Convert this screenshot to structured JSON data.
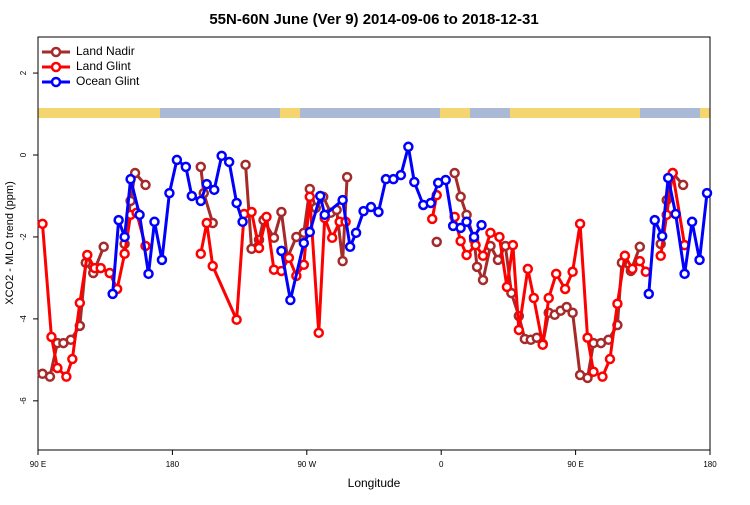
{
  "chart_data": {
    "type": "line",
    "title": "55N-60N June (Ver 9)   2014-09-06 to 2018-12-31",
    "x_label": "Longitude",
    "y_label": "XCO2 - MLO trend (ppm)",
    "xlim": [
      90,
      540
    ],
    "ylim": [
      -7.2,
      2.88
    ],
    "xticks": [
      {
        "value": 90,
        "label": "90 E"
      },
      {
        "value": 180,
        "label": "180"
      },
      {
        "value": 270,
        "label": "90 W"
      },
      {
        "value": 360,
        "label": "0"
      },
      {
        "value": 450,
        "label": "90 E"
      },
      {
        "value": 540,
        "label": "180"
      }
    ],
    "yticks": [
      2,
      0,
      -2,
      -4,
      -6
    ],
    "legend": "top-left",
    "series": [
      {
        "name": "Land Nadir",
        "color": "#a52a2a",
        "x": [
          93,
          98,
          103,
          107,
          112,
          118,
          122,
          127,
          134,
          141,
          148,
          152,
          155,
          162,
          180,
          199,
          201,
          207,
          215,
          229,
          233,
          238,
          241,
          248,
          253,
          257,
          263,
          268,
          272,
          276,
          281,
          286,
          290,
          294,
          297,
          330,
          357,
          365,
          369,
          373,
          377,
          382,
          384,
          388,
          393,
          398,
          403,
          407,
          412,
          416,
          420,
          424,
          428,
          432,
          436,
          440,
          444,
          448,
          453,
          458,
          462,
          467,
          472,
          478,
          481,
          487,
          493,
          500,
          507,
          511,
          515,
          522
        ],
        "values": [
          -5.34,
          -5.41,
          -4.59,
          -4.59,
          -4.51,
          -4.17,
          -2.63,
          -2.88,
          -2.24,
          null,
          -2.17,
          -1.12,
          -0.44,
          -0.73,
          null,
          -0.29,
          -0.93,
          -1.66,
          null,
          -0.24,
          -2.29,
          -2.07,
          -1.59,
          -2.02,
          -1.39,
          -2.51,
          -2.0,
          -1.9,
          -0.83,
          -1.29,
          -1.02,
          -1.41,
          -1.34,
          -2.59,
          -0.54,
          null,
          -2.12,
          null,
          -0.44,
          -1.02,
          -1.46,
          -2.07,
          -2.73,
          -3.05,
          -2.22,
          -2.56,
          -2.22,
          -3.37,
          -3.93,
          -4.49,
          -4.51,
          -4.46,
          -4.61,
          -3.85,
          -3.9,
          -3.8,
          -3.71,
          -3.85,
          -5.37,
          -5.44,
          -4.59,
          -4.59,
          -4.51,
          -4.15,
          -2.63,
          -2.83,
          -2.24,
          null,
          -2.17,
          -1.1,
          -0.44,
          -0.73
        ]
      },
      {
        "name": "Land Glint",
        "color": "#ff0000",
        "x": [
          93,
          99,
          103,
          109,
          113,
          118,
          123,
          128,
          132,
          138,
          143,
          148,
          152,
          156,
          162,
          180,
          199,
          203,
          207,
          223,
          228,
          233,
          238,
          243,
          248,
          253,
          258,
          263,
          268,
          272,
          278,
          282,
          287,
          292,
          296,
          325,
          354,
          357,
          363,
          369,
          373,
          377,
          383,
          388,
          393,
          399,
          404,
          408,
          412,
          418,
          422,
          428,
          432,
          437,
          443,
          448,
          453,
          458,
          462,
          468,
          473,
          478,
          483,
          488,
          493,
          497,
          502,
          507,
          511,
          515,
          523
        ],
        "values": [
          -1.68,
          -4.44,
          -5.2,
          -5.41,
          -4.98,
          -3.61,
          -2.44,
          -2.76,
          -2.76,
          -2.88,
          -3.27,
          -2.41,
          -1.46,
          -1.41,
          -2.22,
          null,
          -2.41,
          -1.66,
          -2.71,
          -4.02,
          -1.44,
          -1.39,
          -2.27,
          -1.51,
          -2.8,
          -2.83,
          -2.51,
          -2.95,
          -2.68,
          -1.02,
          -4.34,
          -1.54,
          -2.02,
          -1.63,
          -1.63,
          null,
          -1.56,
          -0.98,
          null,
          -1.51,
          -2.1,
          -2.44,
          -2.2,
          -2.46,
          -1.9,
          -2.0,
          -3.22,
          -2.2,
          -4.27,
          -2.78,
          -3.49,
          -4.63,
          -3.49,
          -2.9,
          -3.27,
          -2.85,
          -1.68,
          -4.46,
          -5.29,
          -5.41,
          -4.98,
          -3.63,
          -2.46,
          -2.78,
          -2.59,
          -2.85,
          null,
          -2.46,
          -1.46,
          -0.44,
          -2.2
        ]
      },
      {
        "name": "Ocean Glint",
        "color": "#0000ff",
        "x": [
          140,
          144,
          148,
          152,
          158,
          164,
          168,
          173,
          178,
          183,
          189,
          193,
          199,
          203,
          208,
          213,
          218,
          223,
          227,
          240,
          253,
          259,
          268,
          272,
          279,
          282,
          294,
          299,
          303,
          308,
          313,
          318,
          323,
          328,
          333,
          338,
          342,
          348,
          353,
          358,
          363,
          368,
          373,
          377,
          382,
          387,
          450,
          499,
          503,
          508,
          512,
          517,
          523,
          528,
          533,
          538
        ],
        "values": [
          -3.39,
          -1.59,
          -2.0,
          -0.59,
          -1.46,
          -2.9,
          -1.63,
          -2.56,
          -0.93,
          -0.12,
          -0.29,
          -1.0,
          -1.12,
          -0.71,
          -0.85,
          -0.02,
          -0.17,
          -1.17,
          -1.63,
          null,
          -2.34,
          -3.54,
          -2.15,
          -1.88,
          -1.0,
          -1.46,
          -1.1,
          -2.24,
          -1.9,
          -1.37,
          -1.27,
          -1.39,
          -0.59,
          -0.59,
          -0.49,
          0.2,
          -0.66,
          -1.22,
          -1.17,
          -0.68,
          -0.61,
          -1.73,
          -1.78,
          -1.63,
          -2.0,
          -1.71,
          null,
          -3.39,
          -1.59,
          -1.98,
          -0.56,
          -1.44,
          -2.9,
          -1.63,
          -2.56,
          -0.93
        ]
      }
    ]
  }
}
